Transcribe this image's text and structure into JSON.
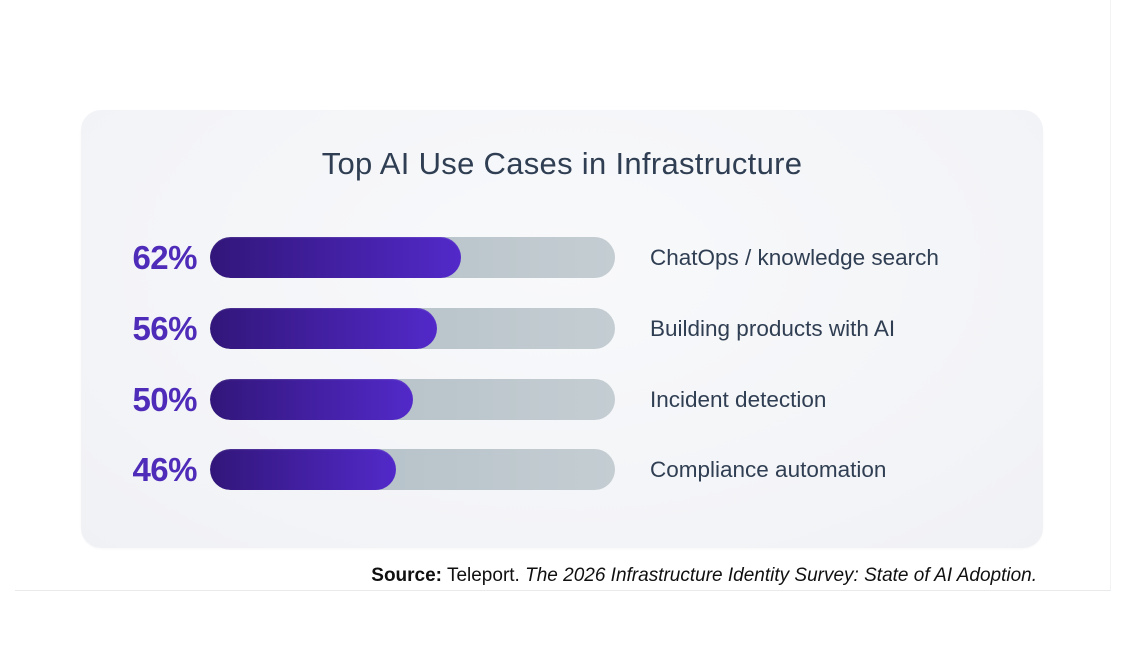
{
  "chart_data": {
    "type": "bar",
    "orientation": "horizontal",
    "title": "Top AI Use Cases in Infrastructure",
    "categories": [
      "ChatOps / knowledge search",
      "Building products with AI",
      "Incident detection",
      "Compliance automation"
    ],
    "values": [
      62,
      56,
      50,
      46
    ],
    "value_labels": [
      "62%",
      "56%",
      "50%",
      "46%"
    ],
    "unit": "percent",
    "xlim": [
      0,
      100
    ],
    "grid": false,
    "legend": "none",
    "colors": {
      "bar_gradient_start": "#32167a",
      "bar_gradient_end": "#5229c9",
      "track": "#b9c4ca",
      "value_label": "#4e2bb8",
      "category_label": "#2f3e52",
      "title": "#2f3e52",
      "card_background": "#f4f5f8",
      "page_background": "#ffffff"
    }
  },
  "source": {
    "label": "Source:",
    "publisher": "Teleport.",
    "report": "The 2026 Infrastructure Identity Survey: State of AI Adoption."
  }
}
